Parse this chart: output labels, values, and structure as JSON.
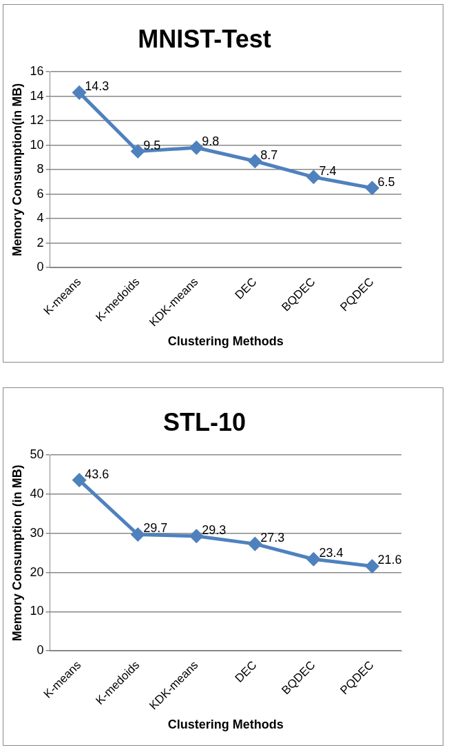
{
  "chart_data": [
    {
      "type": "line",
      "title": "MNIST-Test",
      "xlabel": "Clustering Methods",
      "ylabel": "Memory Consumption(in MB)",
      "categories": [
        "K-means",
        "K-medoids",
        "KDK-means",
        "DEC",
        "BQDEC",
        "PQDEC"
      ],
      "series": [
        {
          "color": "#4f81bd",
          "values": [
            14.3,
            9.5,
            9.8,
            8.7,
            7.4,
            6.5
          ]
        }
      ],
      "ylim": [
        0,
        16
      ],
      "yticks": [
        0,
        2,
        4,
        6,
        8,
        10,
        12,
        14,
        16
      ],
      "grid": "y",
      "legend": false,
      "marker": "diamond",
      "line_style": "solid",
      "data_labels": true
    },
    {
      "type": "line",
      "title": "STL-10",
      "xlabel": "Clustering Methods",
      "ylabel": "Memory Consumption (in MB)",
      "categories": [
        "K-means",
        "K-medoids",
        "KDK-means",
        "DEC",
        "BQDEC",
        "PQDEC"
      ],
      "series": [
        {
          "color": "#4f81bd",
          "values": [
            43.6,
            29.7,
            29.3,
            27.3,
            23.4,
            21.6
          ]
        }
      ],
      "ylim": [
        0,
        50
      ],
      "yticks": [
        0,
        10,
        20,
        30,
        40,
        50
      ],
      "grid": "y",
      "legend": false,
      "marker": "diamond",
      "line_style": "solid",
      "data_labels": true
    }
  ]
}
